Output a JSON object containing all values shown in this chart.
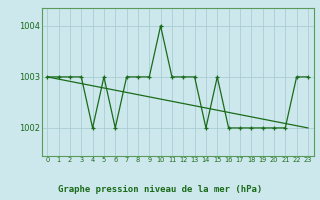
{
  "xlabel": "Graphe pression niveau de la mer (hPa)",
  "bg_color": "#cce8ec",
  "grid_color": "#aacdd4",
  "line_color": "#1a6b1a",
  "marker_color": "#1a6b1a",
  "x": [
    0,
    1,
    2,
    3,
    4,
    5,
    6,
    7,
    8,
    9,
    10,
    11,
    12,
    13,
    14,
    15,
    16,
    17,
    18,
    19,
    20,
    21,
    22,
    23
  ],
  "y_main": [
    1003,
    1003,
    1003,
    1003,
    1002,
    1003,
    1002,
    1003,
    1003,
    1003,
    1004,
    1003,
    1003,
    1003,
    1002,
    1003,
    1002,
    1002,
    1002,
    1002,
    1002,
    1002,
    1003,
    1003
  ],
  "trend_x0": 0,
  "trend_y0": 1003.0,
  "trend_x1": 23,
  "trend_y1": 1002.0,
  "ylim": [
    1001.45,
    1004.35
  ],
  "yticks": [
    1002,
    1003,
    1004
  ],
  "xticks": [
    0,
    1,
    2,
    3,
    4,
    5,
    6,
    7,
    8,
    9,
    10,
    11,
    12,
    13,
    14,
    15,
    16,
    17,
    18,
    19,
    20,
    21,
    22,
    23
  ],
  "spine_color": "#5a9a5a",
  "tick_label_color": "#1a6b1a"
}
